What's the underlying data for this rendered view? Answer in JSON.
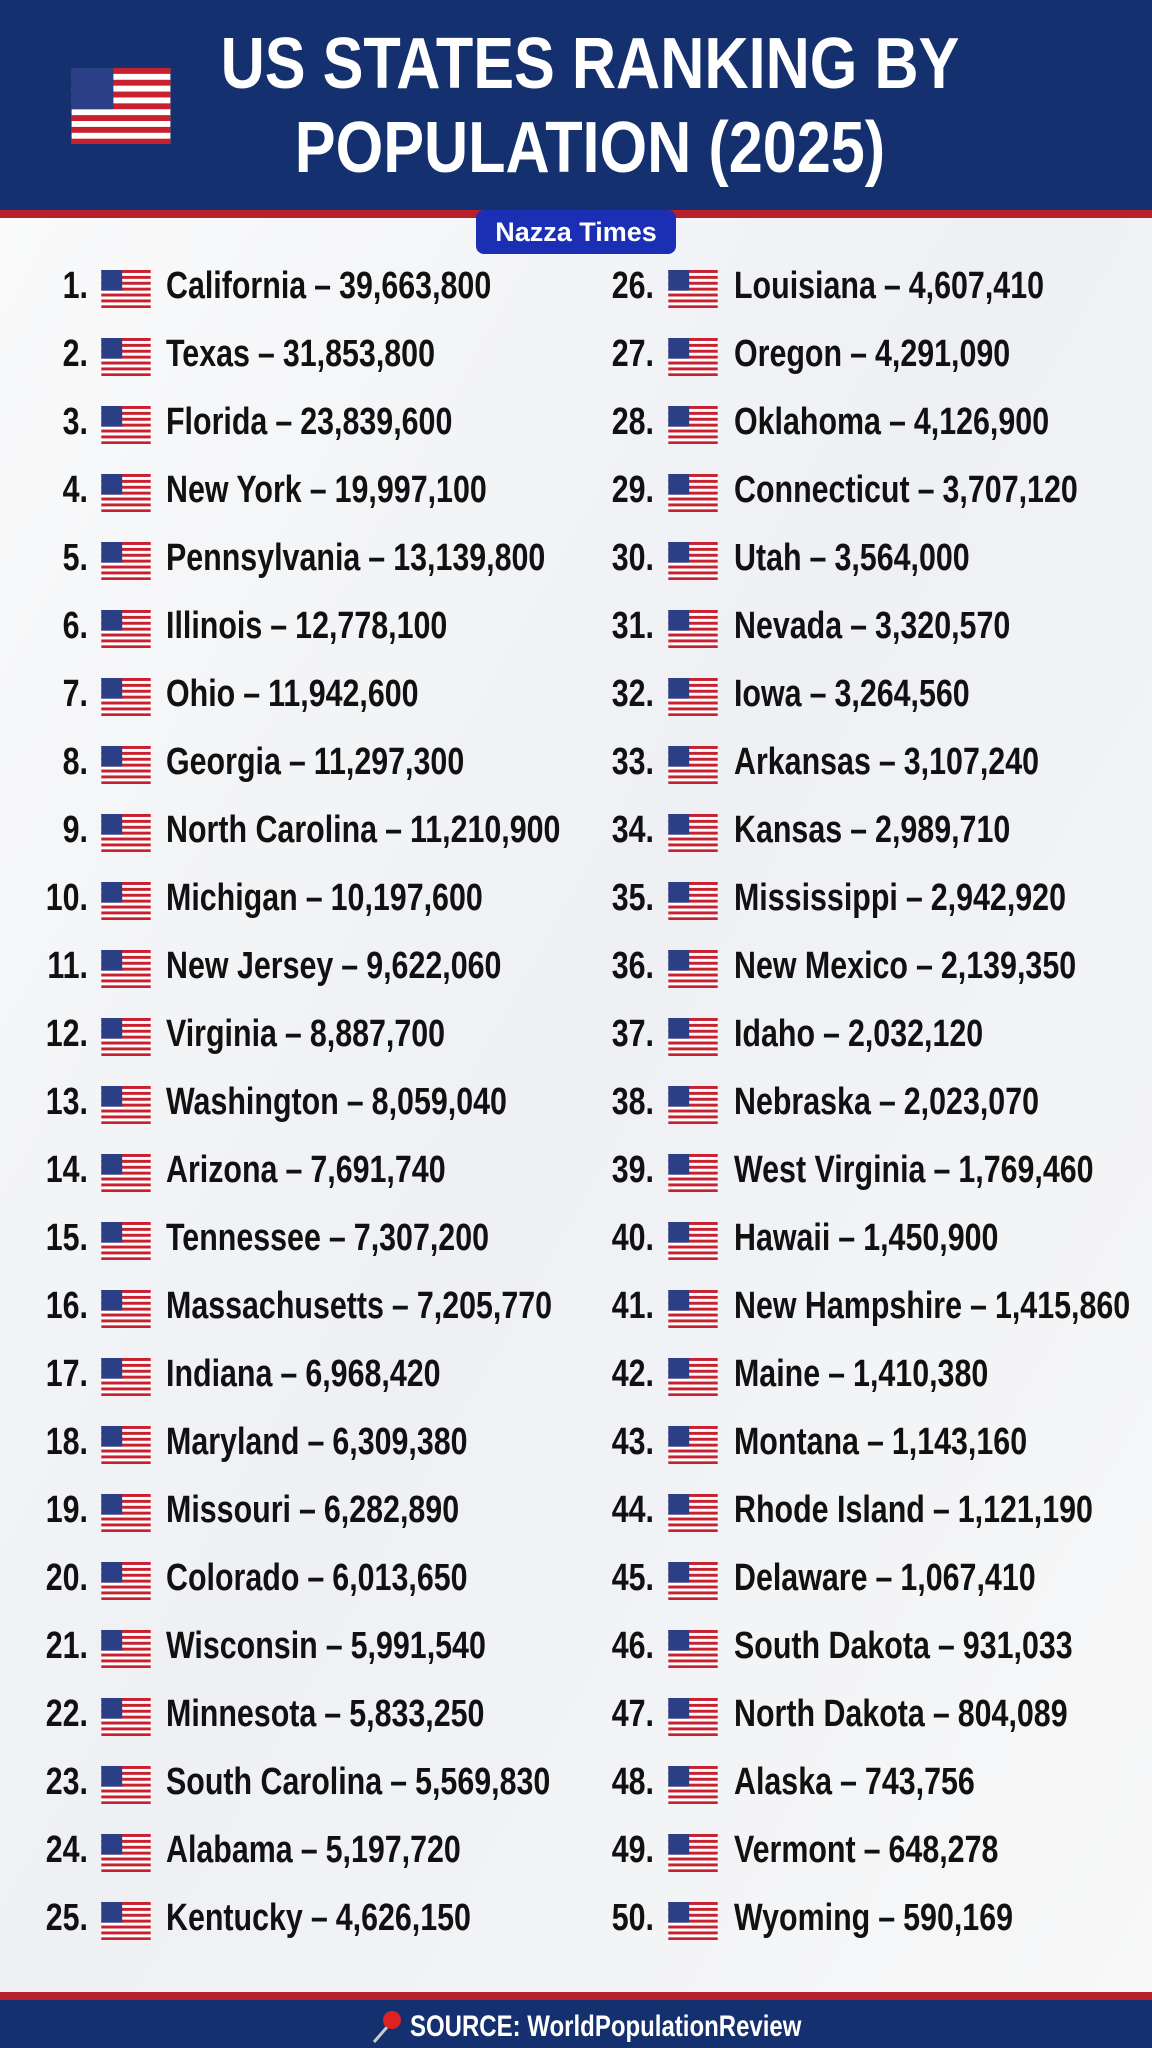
{
  "header": {
    "title_lines": [
      "US STATES RANKING BY",
      "POPULATION (2025)"
    ],
    "badge": "Nazza Times"
  },
  "separator": "–",
  "entries": [
    {
      "rank": "1.",
      "state": "California",
      "population": "39,663,800"
    },
    {
      "rank": "2.",
      "state": "Texas",
      "population": "31,853,800"
    },
    {
      "rank": "3.",
      "state": "Florida",
      "population": "23,839,600"
    },
    {
      "rank": "4.",
      "state": "New York",
      "population": "19,997,100"
    },
    {
      "rank": "5.",
      "state": "Pennsylvania",
      "population": "13,139,800"
    },
    {
      "rank": "6.",
      "state": "Illinois",
      "population": "12,778,100"
    },
    {
      "rank": "7.",
      "state": "Ohio",
      "population": "11,942,600"
    },
    {
      "rank": "8.",
      "state": "Georgia",
      "population": "11,297,300"
    },
    {
      "rank": "9.",
      "state": "North Carolina",
      "population": "11,210,900"
    },
    {
      "rank": "10.",
      "state": "Michigan",
      "population": "10,197,600"
    },
    {
      "rank": "11.",
      "state": "New Jersey",
      "population": "9,622,060"
    },
    {
      "rank": "12.",
      "state": "Virginia",
      "population": "8,887,700"
    },
    {
      "rank": "13.",
      "state": "Washington",
      "population": "8,059,040"
    },
    {
      "rank": "14.",
      "state": "Arizona",
      "population": "7,691,740"
    },
    {
      "rank": "15.",
      "state": "Tennessee",
      "population": "7,307,200"
    },
    {
      "rank": "16.",
      "state": "Massachusetts",
      "population": "7,205,770"
    },
    {
      "rank": "17.",
      "state": "Indiana",
      "population": "6,968,420"
    },
    {
      "rank": "18.",
      "state": "Maryland",
      "population": "6,309,380"
    },
    {
      "rank": "19.",
      "state": "Missouri",
      "population": "6,282,890"
    },
    {
      "rank": "20.",
      "state": "Colorado",
      "population": "6,013,650"
    },
    {
      "rank": "21.",
      "state": "Wisconsin",
      "population": "5,991,540"
    },
    {
      "rank": "22.",
      "state": "Minnesota",
      "population": "5,833,250"
    },
    {
      "rank": "23.",
      "state": "South Carolina",
      "population": "5,569,830"
    },
    {
      "rank": "24.",
      "state": "Alabama",
      "population": "5,197,720"
    },
    {
      "rank": "25.",
      "state": "Kentucky",
      "population": "4,626,150"
    },
    {
      "rank": "26.",
      "state": "Louisiana",
      "population": "4,607,410"
    },
    {
      "rank": "27.",
      "state": "Oregon",
      "population": "4,291,090"
    },
    {
      "rank": "28.",
      "state": "Oklahoma",
      "population": "4,126,900"
    },
    {
      "rank": "29.",
      "state": "Connecticut",
      "population": "3,707,120"
    },
    {
      "rank": "30.",
      "state": "Utah",
      "population": "3,564,000"
    },
    {
      "rank": "31.",
      "state": "Nevada",
      "population": "3,320,570"
    },
    {
      "rank": "32.",
      "state": "Iowa",
      "population": "3,264,560"
    },
    {
      "rank": "33.",
      "state": "Arkansas",
      "population": "3,107,240"
    },
    {
      "rank": "34.",
      "state": "Kansas",
      "population": "2,989,710"
    },
    {
      "rank": "35.",
      "state": "Mississippi",
      "population": "2,942,920"
    },
    {
      "rank": "36.",
      "state": "New Mexico",
      "population": "2,139,350"
    },
    {
      "rank": "37.",
      "state": "Idaho",
      "population": "2,032,120"
    },
    {
      "rank": "38.",
      "state": "Nebraska",
      "population": "2,023,070"
    },
    {
      "rank": "39.",
      "state": "West Virginia",
      "population": "1,769,460"
    },
    {
      "rank": "40.",
      "state": "Hawaii",
      "population": "1,450,900"
    },
    {
      "rank": "41.",
      "state": "New Hampshire",
      "population": "1,415,860"
    },
    {
      "rank": "42.",
      "state": "Maine",
      "population": "1,410,380"
    },
    {
      "rank": "43.",
      "state": "Montana",
      "population": "1,143,160"
    },
    {
      "rank": "44.",
      "state": "Rhode Island",
      "population": "1,121,190"
    },
    {
      "rank": "45.",
      "state": "Delaware",
      "population": "1,067,410"
    },
    {
      "rank": "46.",
      "state": "South Dakota",
      "population": "931,033"
    },
    {
      "rank": "47.",
      "state": "North Dakota",
      "population": "804,089"
    },
    {
      "rank": "48.",
      "state": "Alaska",
      "population": "743,756"
    },
    {
      "rank": "49.",
      "state": "Vermont",
      "population": "648,278"
    },
    {
      "rank": "50.",
      "state": "Wyoming",
      "population": "590,169"
    }
  ],
  "footer": {
    "source": "SOURCE: WorldPopulationReview"
  }
}
